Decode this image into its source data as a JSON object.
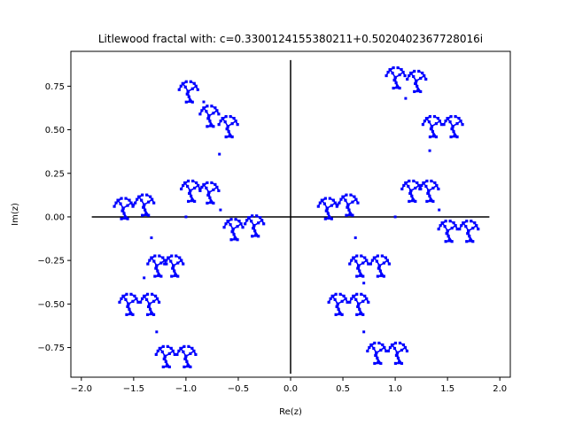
{
  "chart_data": {
    "type": "scatter",
    "title": "Litlewood fractal with: c=0.3300124155380211+0.5020402367728016i",
    "xlabel": "Re(z)",
    "ylabel": "Im(z)",
    "xlim": [
      -2.1,
      2.1
    ],
    "ylim": [
      -0.92,
      0.95
    ],
    "xticks": [
      -2.0,
      -1.5,
      -1.0,
      -0.5,
      0.0,
      0.5,
      1.0,
      1.5,
      2.0
    ],
    "xtick_labels": [
      "−2.0",
      "−1.5",
      "−1.0",
      "−0.5",
      "0.0",
      "0.5",
      "1.0",
      "1.5",
      "2.0"
    ],
    "yticks": [
      0.75,
      0.5,
      0.25,
      0.0,
      -0.25,
      -0.5,
      -0.75
    ],
    "ytick_labels": [
      "0.75",
      "0.50",
      "0.25",
      "0.00",
      "−0.25",
      "−0.50",
      "−0.75"
    ],
    "grid": false,
    "point_color": "#0000ff",
    "axis_line_color": "#000000",
    "axis_lines": {
      "horizontal": {
        "y": 0.0,
        "x_from": -1.9,
        "x_to": 1.9
      },
      "vertical": {
        "x": 0.0,
        "y_from": -0.9,
        "y_to": 0.9
      }
    },
    "clusters": [
      {
        "x": -0.98,
        "y": 0.72
      },
      {
        "x": -0.78,
        "y": 0.58
      },
      {
        "x": -0.6,
        "y": 0.52
      },
      {
        "x": -0.96,
        "y": 0.15
      },
      {
        "x": -0.78,
        "y": 0.14
      },
      {
        "x": -0.55,
        "y": -0.07
      },
      {
        "x": -0.35,
        "y": -0.05
      },
      {
        "x": -1.6,
        "y": 0.05
      },
      {
        "x": -1.4,
        "y": 0.07
      },
      {
        "x": -1.28,
        "y": -0.28
      },
      {
        "x": -1.12,
        "y": -0.28
      },
      {
        "x": -1.55,
        "y": -0.5
      },
      {
        "x": -1.35,
        "y": -0.5
      },
      {
        "x": -1.2,
        "y": -0.8
      },
      {
        "x": -1.0,
        "y": -0.8
      },
      {
        "x": 1.0,
        "y": 0.8
      },
      {
        "x": 1.2,
        "y": 0.78
      },
      {
        "x": 1.35,
        "y": 0.52
      },
      {
        "x": 1.55,
        "y": 0.52
      },
      {
        "x": 1.15,
        "y": 0.15
      },
      {
        "x": 1.32,
        "y": 0.15
      },
      {
        "x": 1.5,
        "y": -0.08
      },
      {
        "x": 1.7,
        "y": -0.08
      },
      {
        "x": 0.35,
        "y": 0.05
      },
      {
        "x": 0.55,
        "y": 0.07
      },
      {
        "x": 0.65,
        "y": -0.28
      },
      {
        "x": 0.85,
        "y": -0.28
      },
      {
        "x": 0.45,
        "y": -0.5
      },
      {
        "x": 0.65,
        "y": -0.5
      },
      {
        "x": 0.82,
        "y": -0.78
      },
      {
        "x": 1.02,
        "y": -0.78
      }
    ],
    "bridges": [
      {
        "x": -0.83,
        "y": 0.66
      },
      {
        "x": -0.68,
        "y": 0.36
      },
      {
        "x": -1.5,
        "y": 0.07
      },
      {
        "x": -1.33,
        "y": -0.12
      },
      {
        "x": -1.4,
        "y": -0.35
      },
      {
        "x": -1.28,
        "y": -0.66
      },
      {
        "x": -1.0,
        "y": 0.0
      },
      {
        "x": -0.67,
        "y": 0.04
      },
      {
        "x": 1.1,
        "y": 0.68
      },
      {
        "x": 1.33,
        "y": 0.38
      },
      {
        "x": 0.45,
        "y": 0.07
      },
      {
        "x": 0.62,
        "y": -0.12
      },
      {
        "x": 0.7,
        "y": -0.38
      },
      {
        "x": 0.7,
        "y": -0.66
      },
      {
        "x": 1.0,
        "y": 0.0
      },
      {
        "x": 1.42,
        "y": 0.04
      }
    ]
  }
}
